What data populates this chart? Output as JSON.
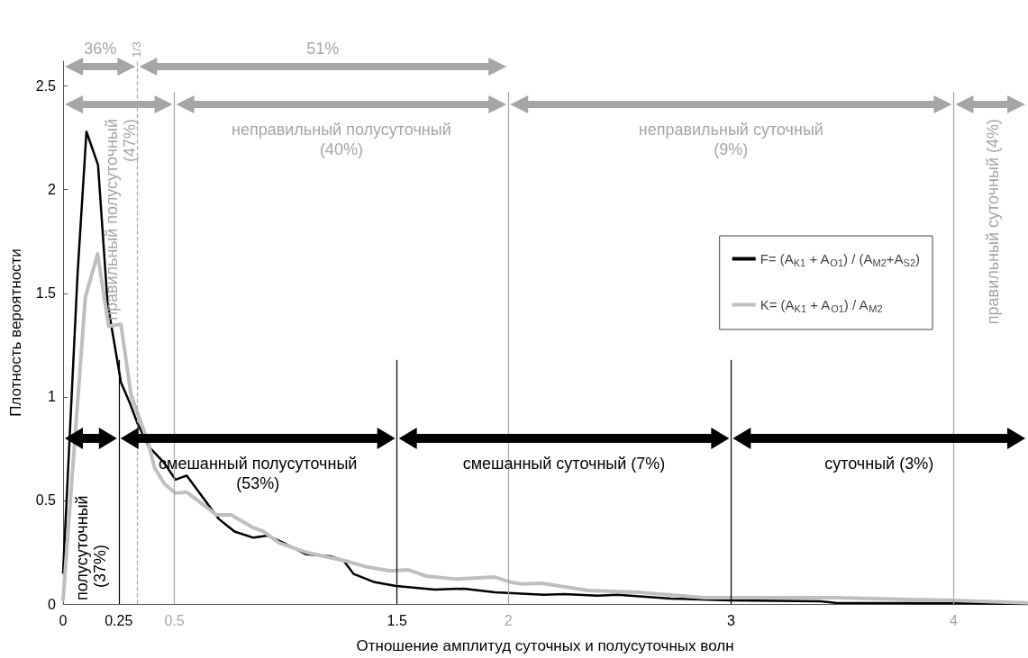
{
  "chart_data": {
    "type": "line",
    "xlabel": "Отношение амплитуд суточных и полусуточных волн",
    "ylabel": "Плотность вероятности",
    "xlim": [
      0,
      4.33
    ],
    "ylim": [
      0,
      2.62
    ],
    "xticks": [
      0,
      0.25,
      0.5,
      1.5,
      2,
      3,
      4
    ],
    "yticks": [
      0,
      0.5,
      1,
      1.5,
      2,
      2.5
    ],
    "grid": false,
    "legend": "right",
    "marker": "none",
    "line_style": "solid",
    "series": [
      {
        "name": "F= (A$_{K1}$ + A$_{O1}$) / (A$_{M2}$+A$_{S2}$)",
        "color": "#000000",
        "x": [
          0,
          0.065,
          0.105,
          0.157,
          0.2,
          0.26,
          0.3,
          0.335,
          0.385,
          0.455,
          0.505,
          0.555,
          0.7,
          0.77,
          0.855,
          0.92,
          1.0,
          1.09,
          1.2,
          1.26,
          1.305,
          1.4,
          1.495,
          1.67,
          1.8,
          1.94,
          2.16,
          2.25,
          2.4,
          2.49,
          2.73,
          3.0,
          3.4,
          3.47,
          4.0,
          4.33
        ],
        "values": [
          0.15,
          1.59,
          2.28,
          2.12,
          1.45,
          1.07,
          0.97,
          0.87,
          0.76,
          0.68,
          0.6,
          0.62,
          0.41,
          0.35,
          0.32,
          0.33,
          0.29,
          0.24,
          0.23,
          0.21,
          0.145,
          0.105,
          0.087,
          0.07,
          0.074,
          0.056,
          0.045,
          0.048,
          0.04,
          0.045,
          0.026,
          0.017,
          0.013,
          0.005,
          0.004,
          0
        ]
      },
      {
        "name": "K= (A$_{K1}$ + A$_{O1}$) / A$_{M2}$",
        "color": "#bfbfbf",
        "x": [
          0,
          0.1,
          0.155,
          0.205,
          0.26,
          0.305,
          0.345,
          0.385,
          0.41,
          0.455,
          0.505,
          0.555,
          0.69,
          0.755,
          0.85,
          0.9,
          0.97,
          1.09,
          1.17,
          1.28,
          1.36,
          1.47,
          1.55,
          1.63,
          1.77,
          1.94,
          2.01,
          2.06,
          2.15,
          2.36,
          2.58,
          2.88,
          3.47,
          4.0,
          4.33
        ],
        "values": [
          0.02,
          1.48,
          1.69,
          1.34,
          1.35,
          1.01,
          0.89,
          0.77,
          0.66,
          0.58,
          0.535,
          0.54,
          0.43,
          0.43,
          0.37,
          0.35,
          0.295,
          0.25,
          0.23,
          0.205,
          0.18,
          0.16,
          0.165,
          0.135,
          0.12,
          0.13,
          0.105,
          0.097,
          0.1,
          0.065,
          0.057,
          0.03,
          0.03,
          0.017,
          0.005
        ]
      }
    ],
    "ref_lines": [
      {
        "axis": "x",
        "value": 0.25,
        "color": "#000000"
      },
      {
        "axis": "x",
        "value": 0.5,
        "color": "#a6a6a6"
      },
      {
        "axis": "x",
        "value": 1.5,
        "color": "#000000"
      },
      {
        "axis": "x",
        "value": 2,
        "color": "#a6a6a6"
      },
      {
        "axis": "x",
        "value": 3,
        "color": "#000000"
      },
      {
        "axis": "x",
        "value": 4,
        "color": "#a6a6a6"
      },
      {
        "axis": "x",
        "value": 0.3333333333333333,
        "color": "#a6a6a6",
        "line_style": "dashed"
      }
    ],
    "annotations": [
      "36%",
      "51%",
      "правильный полусуточный (47%)",
      "неправильный полусуточный (40%)",
      "неправильный суточный (9%)",
      "правильный суточный (4%)",
      "полусуточный (37%)",
      "смешанный полусуточный (53%)",
      "смешанный суточный (7%)",
      "суточный (3%)",
      {
        "text": "1/3",
        "x": 0.3333333333333333,
        "y": 2.62
      }
    ]
  }
}
